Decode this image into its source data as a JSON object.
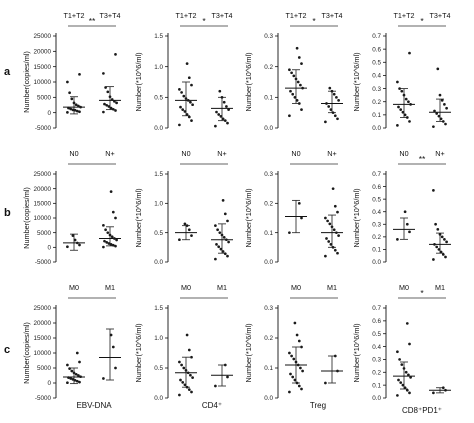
{
  "figure": {
    "row_labels": [
      "a",
      "b",
      "c"
    ],
    "bottom_labels": [
      "EBV-DNA",
      "CD4⁺",
      "Treg",
      "CD8⁺PD1⁺"
    ],
    "colors": {
      "points": "#1a1a1a",
      "axes": "#111111",
      "bracket": "#666666"
    }
  },
  "chart_data": [
    {
      "id": "a1",
      "type": "scatter",
      "groups": [
        "T1+T2",
        "T3+T4"
      ],
      "significance": "**",
      "ylabel": "Number(copies/ml)",
      "ylim": [
        -5000,
        25000
      ],
      "yticks": [
        -5000,
        0,
        5000,
        10000,
        15000,
        20000,
        25000
      ],
      "ytick_labels": [
        "-5000",
        "0",
        "5000",
        "10000",
        "15000",
        "20000",
        "25000"
      ],
      "summary": [
        {
          "median": 1800,
          "low": -400,
          "high": 5200
        },
        {
          "median": 4000,
          "low": 1000,
          "high": 8500
        }
      ],
      "points": [
        [
          100,
          300,
          500,
          800,
          900,
          1200,
          1500,
          1800,
          2200,
          2600,
          3200,
          4500,
          6500,
          10000,
          12500
        ],
        [
          200,
          700,
          1100,
          1500,
          2000,
          2400,
          2800,
          3200,
          3700,
          4300,
          5200,
          6800,
          8200,
          12800,
          19000
        ]
      ]
    },
    {
      "id": "a2",
      "type": "scatter",
      "groups": [
        "T1+T2",
        "T3+T4"
      ],
      "significance": "*",
      "ylabel": "Number(*10^6/ml)",
      "ylim": [
        0,
        1.5
      ],
      "yticks": [
        0,
        0.5,
        1.0,
        1.5
      ],
      "ytick_labels": [
        "0.0",
        "0.5",
        "1.0",
        "1.5"
      ],
      "summary": [
        {
          "median": 0.45,
          "low": 0.2,
          "high": 0.75
        },
        {
          "median": 0.32,
          "low": 0.12,
          "high": 0.5
        }
      ],
      "points": [
        [
          0.05,
          0.12,
          0.18,
          0.22,
          0.27,
          0.3,
          0.34,
          0.38,
          0.42,
          0.45,
          0.48,
          0.52,
          0.58,
          0.63,
          0.7,
          0.82,
          1.05
        ],
        [
          0.03,
          0.08,
          0.12,
          0.15,
          0.19,
          0.22,
          0.26,
          0.3,
          0.35,
          0.42,
          0.5,
          0.6
        ]
      ]
    },
    {
      "id": "a3",
      "type": "scatter",
      "groups": [
        "T1+T2",
        "T3+T4"
      ],
      "significance": "*",
      "ylabel": "Number(*10^6/ml)",
      "ylim": [
        0,
        0.3
      ],
      "yticks": [
        0,
        0.1,
        0.2,
        0.3
      ],
      "ytick_labels": [
        "0.0",
        "0.1",
        "0.2",
        "0.3"
      ],
      "summary": [
        {
          "median": 0.13,
          "low": 0.08,
          "high": 0.19
        },
        {
          "median": 0.08,
          "low": 0.05,
          "high": 0.12
        }
      ],
      "points": [
        [
          0.04,
          0.06,
          0.08,
          0.09,
          0.1,
          0.11,
          0.12,
          0.13,
          0.14,
          0.15,
          0.16,
          0.17,
          0.18,
          0.19,
          0.21,
          0.23,
          0.26
        ],
        [
          0.02,
          0.03,
          0.04,
          0.05,
          0.06,
          0.07,
          0.08,
          0.09,
          0.1,
          0.11,
          0.12,
          0.13
        ]
      ]
    },
    {
      "id": "a4",
      "type": "scatter",
      "groups": [
        "T1+T2",
        "T3+T4"
      ],
      "significance": "*",
      "ylabel": "Number(*10^6/ml)",
      "ylim": [
        0,
        0.7
      ],
      "yticks": [
        0,
        0.1,
        0.2,
        0.3,
        0.4,
        0.5,
        0.6,
        0.7
      ],
      "ytick_labels": [
        "0.0",
        "0.1",
        "0.2",
        "0.3",
        "0.4",
        "0.5",
        "0.6",
        "0.7"
      ],
      "summary": [
        {
          "median": 0.18,
          "low": 0.08,
          "high": 0.3
        },
        {
          "median": 0.12,
          "low": 0.05,
          "high": 0.22
        }
      ],
      "points": [
        [
          0.02,
          0.05,
          0.08,
          0.1,
          0.12,
          0.14,
          0.16,
          0.18,
          0.2,
          0.22,
          0.25,
          0.28,
          0.3,
          0.35,
          0.57
        ],
        [
          0.01,
          0.03,
          0.05,
          0.07,
          0.09,
          0.11,
          0.13,
          0.15,
          0.18,
          0.21,
          0.25,
          0.45
        ]
      ]
    },
    {
      "id": "b1",
      "type": "scatter",
      "groups": [
        "N0",
        "N+"
      ],
      "significance": "",
      "ylabel": "Number(copies/ml)",
      "ylim": [
        -5000,
        25000
      ],
      "yticks": [
        -5000,
        0,
        5000,
        10000,
        15000,
        20000,
        25000
      ],
      "ytick_labels": [
        "-5000",
        "0",
        "5000",
        "10000",
        "15000",
        "20000",
        "25000"
      ],
      "summary": [
        {
          "median": 1500,
          "low": -1000,
          "high": 4500
        },
        {
          "median": 3000,
          "low": 500,
          "high": 7000
        }
      ],
      "points": [
        [
          200,
          800,
          1500,
          2500,
          4000
        ],
        [
          100,
          400,
          700,
          1000,
          1300,
          1700,
          2100,
          2500,
          3000,
          3600,
          4200,
          5000,
          6000,
          7500,
          10000,
          12000,
          19000
        ]
      ]
    },
    {
      "id": "b2",
      "type": "scatter",
      "groups": [
        "N0",
        "N+"
      ],
      "significance": "",
      "ylabel": "Number(*10^6/ml)",
      "ylim": [
        0,
        1.5
      ],
      "yticks": [
        0,
        0.5,
        1.0,
        1.5
      ],
      "ytick_labels": [
        "0.0",
        "0.5",
        "1.0",
        "1.5"
      ],
      "summary": [
        {
          "median": 0.5,
          "low": 0.38,
          "high": 0.62
        },
        {
          "median": 0.38,
          "low": 0.15,
          "high": 0.65
        }
      ],
      "points": [
        [
          0.38,
          0.45,
          0.55,
          0.62,
          0.65
        ],
        [
          0.05,
          0.1,
          0.14,
          0.18,
          0.22,
          0.26,
          0.3,
          0.34,
          0.38,
          0.42,
          0.46,
          0.5,
          0.55,
          0.62,
          0.7,
          0.82,
          1.05
        ]
      ]
    },
    {
      "id": "b3",
      "type": "scatter",
      "groups": [
        "N0",
        "N+"
      ],
      "significance": "",
      "ylabel": "Number(*10^6/ml)",
      "ylim": [
        0,
        0.3
      ],
      "yticks": [
        0,
        0.1,
        0.2,
        0.3
      ],
      "ytick_labels": [
        "0.0",
        "0.1",
        "0.2",
        "0.3"
      ],
      "summary": [
        {
          "median": 0.155,
          "low": 0.1,
          "high": 0.21
        },
        {
          "median": 0.1,
          "low": 0.05,
          "high": 0.16
        }
      ],
      "points": [
        [
          0.1,
          0.15,
          0.2
        ],
        [
          0.02,
          0.03,
          0.04,
          0.05,
          0.06,
          0.07,
          0.08,
          0.09,
          0.1,
          0.11,
          0.12,
          0.13,
          0.14,
          0.15,
          0.17,
          0.19,
          0.25
        ]
      ]
    },
    {
      "id": "b4",
      "type": "scatter",
      "groups": [
        "N0",
        "N+"
      ],
      "significance": "**",
      "ylabel": "Number(*10^6/ml)",
      "ylim": [
        0,
        0.7
      ],
      "yticks": [
        0,
        0.1,
        0.2,
        0.3,
        0.4,
        0.5,
        0.6,
        0.7
      ],
      "ytick_labels": [
        "0.0",
        "0.1",
        "0.2",
        "0.3",
        "0.4",
        "0.5",
        "0.6",
        "0.7"
      ],
      "summary": [
        {
          "median": 0.26,
          "low": 0.18,
          "high": 0.35
        },
        {
          "median": 0.14,
          "low": 0.07,
          "high": 0.23
        }
      ],
      "points": [
        [
          0.18,
          0.24,
          0.3,
          0.4
        ],
        [
          0.02,
          0.04,
          0.06,
          0.08,
          0.1,
          0.12,
          0.14,
          0.16,
          0.18,
          0.2,
          0.22,
          0.26,
          0.3,
          0.57
        ]
      ]
    },
    {
      "id": "c1",
      "type": "scatter",
      "groups": [
        "M0",
        "M1"
      ],
      "significance": "",
      "ylabel": "Number(copies/ml)",
      "ylim": [
        -5000,
        25000
      ],
      "yticks": [
        -5000,
        0,
        5000,
        10000,
        15000,
        20000,
        25000
      ],
      "ytick_labels": [
        "-5000",
        "0",
        "5000",
        "10000",
        "15000",
        "20000",
        "25000"
      ],
      "summary": [
        {
          "median": 2000,
          "low": -200,
          "high": 5000
        },
        {
          "median": 8500,
          "low": 1000,
          "high": 18000
        }
      ],
      "points": [
        [
          100,
          300,
          600,
          900,
          1200,
          1500,
          1800,
          2100,
          2500,
          2900,
          3400,
          4000,
          4800,
          6000,
          7000,
          10000
        ],
        [
          1500,
          5000,
          12000,
          16000
        ]
      ]
    },
    {
      "id": "c2",
      "type": "scatter",
      "groups": [
        "M0",
        "M1"
      ],
      "significance": "",
      "ylabel": "Number(*10^6/ml)",
      "ylim": [
        0,
        1.5
      ],
      "yticks": [
        0,
        0.5,
        1.0,
        1.5
      ],
      "ytick_labels": [
        "0.0",
        "0.5",
        "1.0",
        "1.5"
      ],
      "summary": [
        {
          "median": 0.42,
          "low": 0.18,
          "high": 0.68
        },
        {
          "median": 0.38,
          "low": 0.2,
          "high": 0.55
        }
      ],
      "points": [
        [
          0.05,
          0.1,
          0.14,
          0.18,
          0.22,
          0.26,
          0.3,
          0.34,
          0.38,
          0.42,
          0.46,
          0.5,
          0.55,
          0.6,
          0.68,
          0.8,
          1.05
        ],
        [
          0.2,
          0.35,
          0.55
        ]
      ]
    },
    {
      "id": "c3",
      "type": "scatter",
      "groups": [
        "M0",
        "M1"
      ],
      "significance": "",
      "ylabel": "Number(*10^6/ml)",
      "ylim": [
        0,
        0.3
      ],
      "yticks": [
        0,
        0.1,
        0.2,
        0.3
      ],
      "ytick_labels": [
        "0.0",
        "0.1",
        "0.2",
        "0.3"
      ],
      "summary": [
        {
          "median": 0.11,
          "low": 0.05,
          "high": 0.17
        },
        {
          "median": 0.09,
          "low": 0.05,
          "high": 0.14
        }
      ],
      "points": [
        [
          0.02,
          0.03,
          0.04,
          0.05,
          0.06,
          0.07,
          0.08,
          0.09,
          0.1,
          0.11,
          0.12,
          0.13,
          0.14,
          0.15,
          0.17,
          0.19,
          0.21,
          0.25
        ],
        [
          0.05,
          0.09,
          0.14
        ]
      ]
    },
    {
      "id": "c4",
      "type": "scatter",
      "groups": [
        "M0",
        "M1"
      ],
      "significance": "*",
      "ylabel": "Number(*10^6/ml)",
      "ylim": [
        0,
        0.7
      ],
      "yticks": [
        0,
        0.1,
        0.2,
        0.3,
        0.4,
        0.5,
        0.6,
        0.7
      ],
      "ytick_labels": [
        "0.0",
        "0.1",
        "0.2",
        "0.3",
        "0.4",
        "0.5",
        "0.6",
        "0.7"
      ],
      "summary": [
        {
          "median": 0.17,
          "low": 0.07,
          "high": 0.28
        },
        {
          "median": 0.06,
          "low": 0.04,
          "high": 0.08
        }
      ],
      "points": [
        [
          0.02,
          0.04,
          0.06,
          0.08,
          0.1,
          0.12,
          0.14,
          0.16,
          0.18,
          0.2,
          0.23,
          0.26,
          0.3,
          0.36,
          0.42,
          0.58
        ],
        [
          0.04,
          0.06,
          0.08
        ]
      ]
    }
  ]
}
